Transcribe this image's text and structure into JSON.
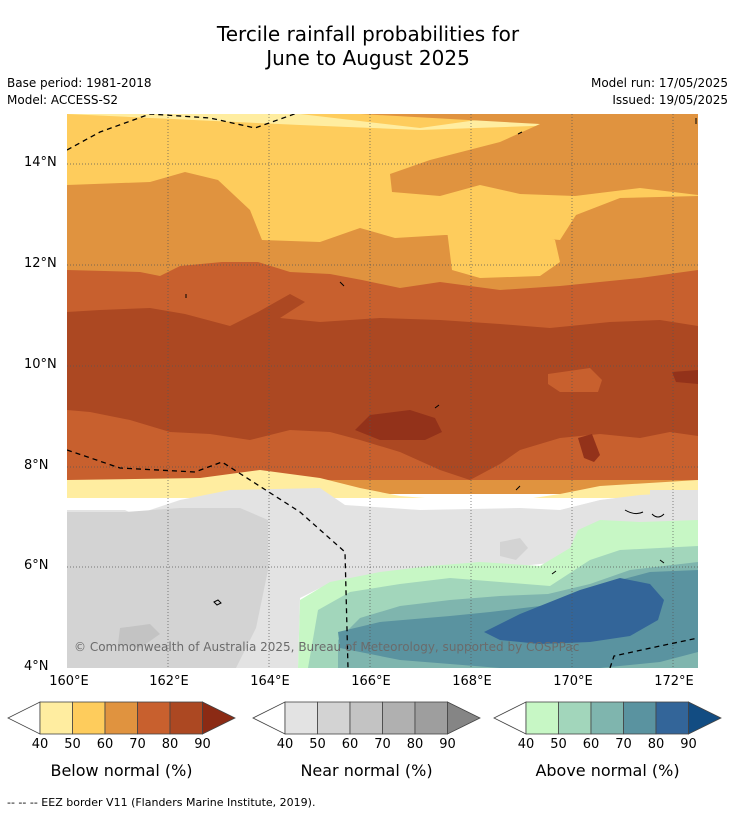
{
  "title_line1": "Tercile rainfall probabilities for",
  "title_line2": "June to August 2025",
  "meta": {
    "base_period": "Base period: 1981-2018",
    "model": "Model: ACCESS-S2",
    "model_run": "Model run: 17/05/2025",
    "issued": "Issued: 19/05/2025"
  },
  "map": {
    "lat_ticks": [
      "14°N",
      "12°N",
      "10°N",
      "8°N",
      "6°N",
      "4°N"
    ],
    "lon_ticks": [
      "160°E",
      "162°E",
      "164°E",
      "166°E",
      "168°E",
      "170°E",
      "172°E"
    ],
    "copyright": "© Commonwealth of Australia 2025, Bureau of Meteorology, supported by COSPPac"
  },
  "legends": [
    {
      "title": "Below normal (%)",
      "labels": [
        "40",
        "50",
        "60",
        "70",
        "80",
        "90"
      ],
      "colors": [
        "#ffffff",
        "#ffeda0",
        "#fecc5c",
        "#e0933f",
        "#c8602e",
        "#ac4822",
        "#8b2a14"
      ]
    },
    {
      "title": "Near normal (%)",
      "labels": [
        "40",
        "50",
        "60",
        "70",
        "80",
        "90"
      ],
      "colors": [
        "#ffffff",
        "#e3e3e3",
        "#d3d3d3",
        "#c3c3c3",
        "#b0b0b0",
        "#9e9e9e",
        "#858585"
      ]
    },
    {
      "title": "Above normal (%)",
      "labels": [
        "40",
        "50",
        "60",
        "70",
        "80",
        "90"
      ],
      "colors": [
        "#ffffff",
        "#c7f7c5",
        "#a2d6bb",
        "#7fb5ae",
        "#5a93a0",
        "#336599",
        "#124c82"
      ]
    }
  ],
  "footer": "--  --  -- EEZ border V11 (Flanders Marine Institute, 2019)."
}
